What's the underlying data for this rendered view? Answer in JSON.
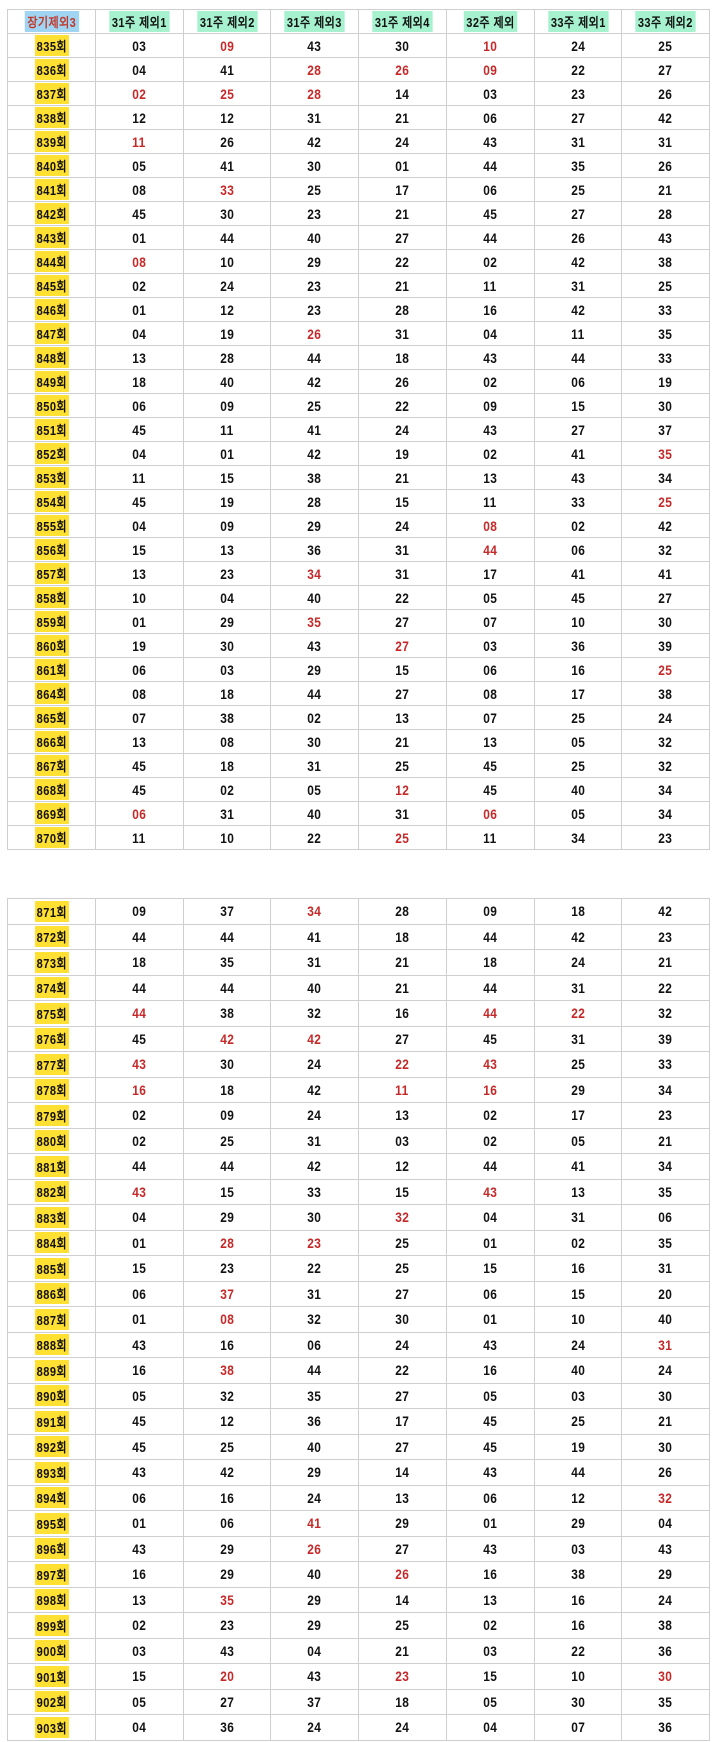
{
  "header": [
    "장기제외3",
    "31주 제외1",
    "31주 제외2",
    "31주 제외3",
    "31주 제외4",
    "32주 제외",
    "33주 제외1",
    "33주 제외2"
  ],
  "colors": {
    "red_text": "#c62828",
    "round_highlight": "#ffe033",
    "header_highlight": "#a6f2cf",
    "first_header_highlight": "#9fd4f2"
  },
  "section1": [
    {
      "round": "835회",
      "cells": [
        "03",
        "09",
        "43",
        "30",
        "10",
        "24",
        "25"
      ],
      "red": [
        1,
        4
      ]
    },
    {
      "round": "836회",
      "cells": [
        "04",
        "41",
        "28",
        "26",
        "09",
        "22",
        "27"
      ],
      "red": [
        2,
        3,
        4
      ]
    },
    {
      "round": "837회",
      "cells": [
        "02",
        "25",
        "28",
        "14",
        "03",
        "23",
        "26"
      ],
      "red": [
        0,
        1,
        2
      ]
    },
    {
      "round": "838회",
      "cells": [
        "12",
        "12",
        "31",
        "21",
        "06",
        "27",
        "42"
      ],
      "red": []
    },
    {
      "round": "839회",
      "cells": [
        "11",
        "26",
        "42",
        "24",
        "43",
        "31",
        "31"
      ],
      "red": [
        0
      ]
    },
    {
      "round": "840회",
      "cells": [
        "05",
        "41",
        "30",
        "01",
        "44",
        "35",
        "26"
      ],
      "red": []
    },
    {
      "round": "841회",
      "cells": [
        "08",
        "33",
        "25",
        "17",
        "06",
        "25",
        "21"
      ],
      "red": [
        1
      ]
    },
    {
      "round": "842회",
      "cells": [
        "45",
        "30",
        "23",
        "21",
        "45",
        "27",
        "28"
      ],
      "red": []
    },
    {
      "round": "843회",
      "cells": [
        "01",
        "44",
        "40",
        "27",
        "44",
        "26",
        "43"
      ],
      "red": []
    },
    {
      "round": "844회",
      "cells": [
        "08",
        "10",
        "29",
        "22",
        "02",
        "42",
        "38"
      ],
      "red": [
        0
      ]
    },
    {
      "round": "845회",
      "cells": [
        "02",
        "24",
        "23",
        "21",
        "11",
        "31",
        "25"
      ],
      "red": []
    },
    {
      "round": "846회",
      "cells": [
        "01",
        "12",
        "23",
        "28",
        "16",
        "42",
        "33"
      ],
      "red": []
    },
    {
      "round": "847회",
      "cells": [
        "04",
        "19",
        "26",
        "31",
        "04",
        "11",
        "35"
      ],
      "red": [
        2
      ]
    },
    {
      "round": "848회",
      "cells": [
        "13",
        "28",
        "44",
        "18",
        "43",
        "44",
        "33"
      ],
      "red": []
    },
    {
      "round": "849회",
      "cells": [
        "18",
        "40",
        "42",
        "26",
        "02",
        "06",
        "19"
      ],
      "red": []
    },
    {
      "round": "850회",
      "cells": [
        "06",
        "09",
        "25",
        "22",
        "09",
        "15",
        "30"
      ],
      "red": []
    },
    {
      "round": "851회",
      "cells": [
        "45",
        "11",
        "41",
        "24",
        "43",
        "27",
        "37"
      ],
      "red": []
    },
    {
      "round": "852회",
      "cells": [
        "04",
        "01",
        "42",
        "19",
        "02",
        "41",
        "35"
      ],
      "red": [
        6
      ]
    },
    {
      "round": "853회",
      "cells": [
        "11",
        "15",
        "38",
        "21",
        "13",
        "43",
        "34"
      ],
      "red": []
    },
    {
      "round": "854회",
      "cells": [
        "45",
        "19",
        "28",
        "15",
        "11",
        "33",
        "25"
      ],
      "red": [
        6
      ]
    },
    {
      "round": "855회",
      "cells": [
        "04",
        "09",
        "29",
        "24",
        "08",
        "02",
        "42"
      ],
      "red": [
        4
      ]
    },
    {
      "round": "856회",
      "cells": [
        "15",
        "13",
        "36",
        "31",
        "44",
        "06",
        "32"
      ],
      "red": [
        4
      ]
    },
    {
      "round": "857회",
      "cells": [
        "13",
        "23",
        "34",
        "31",
        "17",
        "41",
        "41"
      ],
      "red": [
        2
      ]
    },
    {
      "round": "858회",
      "cells": [
        "10",
        "04",
        "40",
        "22",
        "05",
        "45",
        "27"
      ],
      "red": []
    },
    {
      "round": "859회",
      "cells": [
        "01",
        "29",
        "35",
        "27",
        "07",
        "10",
        "30"
      ],
      "red": [
        2
      ]
    },
    {
      "round": "860회",
      "cells": [
        "19",
        "30",
        "43",
        "27",
        "03",
        "36",
        "39"
      ],
      "red": [
        3
      ]
    },
    {
      "round": "861회",
      "cells": [
        "06",
        "03",
        "29",
        "15",
        "06",
        "16",
        "25"
      ],
      "red": [
        6
      ]
    },
    {
      "round": "864회",
      "cells": [
        "08",
        "18",
        "44",
        "27",
        "08",
        "17",
        "38"
      ],
      "red": []
    },
    {
      "round": "865회",
      "cells": [
        "07",
        "38",
        "02",
        "13",
        "07",
        "25",
        "24"
      ],
      "red": []
    },
    {
      "round": "866회",
      "cells": [
        "13",
        "08",
        "30",
        "21",
        "13",
        "05",
        "32"
      ],
      "red": []
    },
    {
      "round": "867회",
      "cells": [
        "45",
        "18",
        "31",
        "25",
        "45",
        "25",
        "32"
      ],
      "red": []
    },
    {
      "round": "868회",
      "cells": [
        "45",
        "02",
        "05",
        "12",
        "45",
        "40",
        "34"
      ],
      "red": [
        3
      ]
    },
    {
      "round": "869회",
      "cells": [
        "06",
        "31",
        "40",
        "31",
        "06",
        "05",
        "34"
      ],
      "red": [
        0,
        4
      ]
    },
    {
      "round": "870회",
      "cells": [
        "11",
        "10",
        "22",
        "25",
        "11",
        "34",
        "23"
      ],
      "red": [
        3
      ]
    }
  ],
  "section2": [
    {
      "round": "871회",
      "cells": [
        "09",
        "37",
        "34",
        "28",
        "09",
        "18",
        "42"
      ],
      "red": [
        2
      ]
    },
    {
      "round": "872회",
      "cells": [
        "44",
        "44",
        "41",
        "18",
        "44",
        "42",
        "23"
      ],
      "red": []
    },
    {
      "round": "873회",
      "cells": [
        "18",
        "35",
        "31",
        "21",
        "18",
        "24",
        "21"
      ],
      "red": []
    },
    {
      "round": "874회",
      "cells": [
        "44",
        "44",
        "40",
        "21",
        "44",
        "31",
        "22"
      ],
      "red": []
    },
    {
      "round": "875회",
      "cells": [
        "44",
        "38",
        "32",
        "16",
        "44",
        "22",
        "32"
      ],
      "red": [
        0,
        4,
        5
      ]
    },
    {
      "round": "876회",
      "cells": [
        "45",
        "42",
        "42",
        "27",
        "45",
        "31",
        "39"
      ],
      "red": [
        1,
        2
      ]
    },
    {
      "round": "877회",
      "cells": [
        "43",
        "30",
        "24",
        "22",
        "43",
        "25",
        "33"
      ],
      "red": [
        0,
        3,
        4
      ]
    },
    {
      "round": "878회",
      "cells": [
        "16",
        "18",
        "42",
        "11",
        "16",
        "29",
        "34"
      ],
      "red": [
        0,
        3,
        4
      ]
    },
    {
      "round": "879회",
      "cells": [
        "02",
        "09",
        "24",
        "13",
        "02",
        "17",
        "23"
      ],
      "red": []
    },
    {
      "round": "880회",
      "cells": [
        "02",
        "25",
        "31",
        "03",
        "02",
        "05",
        "21"
      ],
      "red": []
    },
    {
      "round": "881회",
      "cells": [
        "44",
        "44",
        "42",
        "12",
        "44",
        "41",
        "34"
      ],
      "red": []
    },
    {
      "round": "882회",
      "cells": [
        "43",
        "15",
        "33",
        "15",
        "43",
        "13",
        "35"
      ],
      "red": [
        0,
        4
      ]
    },
    {
      "round": "883회",
      "cells": [
        "04",
        "29",
        "30",
        "32",
        "04",
        "31",
        "06"
      ],
      "red": [
        3
      ]
    },
    {
      "round": "884회",
      "cells": [
        "01",
        "28",
        "23",
        "25",
        "01",
        "02",
        "35"
      ],
      "red": [
        1,
        2
      ]
    },
    {
      "round": "885회",
      "cells": [
        "15",
        "23",
        "22",
        "25",
        "15",
        "16",
        "31"
      ],
      "red": []
    },
    {
      "round": "886회",
      "cells": [
        "06",
        "37",
        "31",
        "27",
        "06",
        "15",
        "20"
      ],
      "red": [
        1
      ]
    },
    {
      "round": "887회",
      "cells": [
        "01",
        "08",
        "32",
        "30",
        "01",
        "10",
        "40"
      ],
      "red": [
        1
      ]
    },
    {
      "round": "888회",
      "cells": [
        "43",
        "16",
        "06",
        "24",
        "43",
        "24",
        "31"
      ],
      "red": [
        6
      ]
    },
    {
      "round": "889회",
      "cells": [
        "16",
        "38",
        "44",
        "22",
        "16",
        "40",
        "24"
      ],
      "red": [
        1
      ]
    },
    {
      "round": "890회",
      "cells": [
        "05",
        "32",
        "35",
        "27",
        "05",
        "03",
        "30"
      ],
      "red": []
    },
    {
      "round": "891회",
      "cells": [
        "45",
        "12",
        "36",
        "17",
        "45",
        "25",
        "21"
      ],
      "red": []
    },
    {
      "round": "892회",
      "cells": [
        "45",
        "25",
        "40",
        "27",
        "45",
        "19",
        "30"
      ],
      "red": []
    },
    {
      "round": "893회",
      "cells": [
        "43",
        "42",
        "29",
        "14",
        "43",
        "44",
        "26"
      ],
      "red": []
    },
    {
      "round": "894회",
      "cells": [
        "06",
        "16",
        "24",
        "13",
        "06",
        "12",
        "32"
      ],
      "red": [
        6
      ]
    },
    {
      "round": "895회",
      "cells": [
        "01",
        "06",
        "41",
        "29",
        "01",
        "29",
        "04"
      ],
      "red": [
        2
      ]
    },
    {
      "round": "896회",
      "cells": [
        "43",
        "29",
        "26",
        "27",
        "43",
        "03",
        "43"
      ],
      "red": [
        2
      ]
    },
    {
      "round": "897회",
      "cells": [
        "16",
        "29",
        "40",
        "26",
        "16",
        "38",
        "29"
      ],
      "red": [
        3
      ]
    },
    {
      "round": "898회",
      "cells": [
        "13",
        "35",
        "29",
        "14",
        "13",
        "16",
        "24"
      ],
      "red": [
        1
      ]
    },
    {
      "round": "899회",
      "cells": [
        "02",
        "23",
        "29",
        "25",
        "02",
        "16",
        "38"
      ],
      "red": []
    },
    {
      "round": "900회",
      "cells": [
        "03",
        "43",
        "04",
        "21",
        "03",
        "22",
        "36"
      ],
      "red": []
    },
    {
      "round": "901회",
      "cells": [
        "15",
        "20",
        "43",
        "23",
        "15",
        "10",
        "30"
      ],
      "red": [
        1,
        3,
        6
      ]
    },
    {
      "round": "902회",
      "cells": [
        "05",
        "27",
        "37",
        "18",
        "05",
        "30",
        "35"
      ],
      "red": []
    },
    {
      "round": "903회",
      "cells": [
        "04",
        "36",
        "24",
        "24",
        "04",
        "07",
        "36"
      ],
      "red": []
    }
  ]
}
